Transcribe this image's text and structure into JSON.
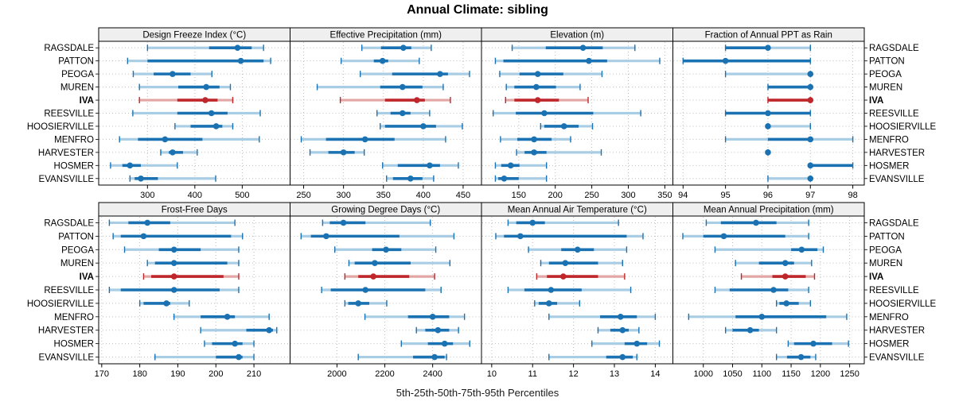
{
  "chart_data": {
    "type": "dotplot",
    "title": "Annual Climate: sibling",
    "caption": "5th-25th-50th-75th-95th Percentiles",
    "percentiles": [
      5,
      25,
      50,
      75,
      95
    ],
    "legend_position": "none",
    "grid": "dotted",
    "sites": [
      "RAGSDALE",
      "PATTON",
      "PEOGA",
      "MUREN",
      "IVA",
      "REESVILLE",
      "HOOSIERVILLE",
      "MENFRO",
      "HARVESTER",
      "HOSMER",
      "EVANSVILLE"
    ],
    "highlight_site": "IVA",
    "colors": {
      "series_blue": "#1a72b2",
      "series_blue_light": "#a9cde4",
      "highlight_red": "#bf272b",
      "highlight_red_light": "#e2a6a4",
      "strip_bg": "#efefef",
      "grid_dotted": "#bdbdbd",
      "panel_border": "#000000"
    },
    "panels": [
      {
        "title": "Design Freeze Index (°C)",
        "row": 0,
        "col": 0,
        "xlim": [
          197,
          601
        ],
        "ticks": [
          300,
          400,
          500
        ],
        "values": [
          [
            300,
            430,
            490,
            520,
            545
          ],
          [
            258,
            300,
            497,
            545,
            560
          ],
          [
            270,
            313,
            353,
            391,
            436
          ],
          [
            283,
            365,
            424,
            452,
            475
          ],
          [
            283,
            363,
            422,
            448,
            480
          ],
          [
            269,
            363,
            435,
            469,
            538
          ],
          [
            358,
            391,
            445,
            458,
            480
          ],
          [
            241,
            280,
            337,
            416,
            536
          ],
          [
            328,
            345,
            353,
            375,
            405
          ],
          [
            222,
            247,
            263,
            286,
            363
          ],
          [
            263,
            273,
            286,
            322,
            444
          ]
        ]
      },
      {
        "title": "Effective Precipitation (mm)",
        "row": 0,
        "col": 1,
        "xlim": [
          233,
          473
        ],
        "ticks": [
          250,
          300,
          350,
          400,
          450
        ],
        "values": [
          [
            323,
            347,
            375,
            385,
            410
          ],
          [
            297,
            338,
            349,
            356,
            395
          ],
          [
            321,
            361,
            421,
            431,
            458
          ],
          [
            267,
            346,
            374,
            399,
            425
          ],
          [
            296,
            352,
            392,
            402,
            434
          ],
          [
            342,
            359,
            374,
            384,
            408
          ],
          [
            346,
            352,
            400,
            416,
            449
          ],
          [
            247,
            278,
            327,
            364,
            428
          ],
          [
            258,
            281,
            300,
            314,
            326
          ],
          [
            349,
            368,
            408,
            421,
            444
          ],
          [
            354,
            362,
            384,
            399,
            413
          ]
        ]
      },
      {
        "title": "Elevation (m)",
        "row": 0,
        "col": 2,
        "xlim": [
          99,
          361
        ],
        "ticks": [
          150,
          200,
          250,
          300,
          350
        ],
        "values": [
          [
            141,
            187,
            238,
            265,
            309
          ],
          [
            118,
            129,
            246,
            271,
            343
          ],
          [
            124,
            151,
            176,
            211,
            264
          ],
          [
            133,
            144,
            174,
            201,
            234
          ],
          [
            132,
            144,
            176,
            205,
            245
          ],
          [
            115,
            146,
            185,
            252,
            317
          ],
          [
            180,
            185,
            212,
            232,
            251
          ],
          [
            125,
            148,
            171,
            195,
            221
          ],
          [
            147,
            158,
            171,
            188,
            263
          ],
          [
            118,
            126,
            139,
            151,
            188
          ],
          [
            118,
            122,
            130,
            150,
            188
          ]
        ]
      },
      {
        "title": "Fraction of Annual PPT as Rain",
        "row": 0,
        "col": 3,
        "xlim": [
          93.76,
          98.27
        ],
        "ticks": [
          94,
          95,
          96,
          97,
          98
        ],
        "values": [
          [
            95,
            95,
            96,
            96,
            97
          ],
          [
            94,
            94,
            95,
            97,
            97
          ],
          [
            95,
            97,
            97,
            97,
            97
          ],
          [
            96,
            96,
            97,
            97,
            97
          ],
          [
            96,
            96,
            97,
            97,
            97
          ],
          [
            95,
            95,
            96,
            97,
            97
          ],
          [
            96,
            96,
            96,
            96,
            97
          ],
          [
            95,
            96,
            97,
            97,
            98
          ],
          [
            96,
            96,
            96,
            96,
            96
          ],
          [
            97,
            97,
            97,
            98,
            98
          ],
          [
            96,
            97,
            97,
            97,
            97
          ]
        ]
      },
      {
        "title": "Frost-Free Days",
        "row": 1,
        "col": 0,
        "xlim": [
          169.2,
          219.5
        ],
        "ticks": [
          170,
          180,
          190,
          200,
          210
        ],
        "values": [
          [
            172,
            177,
            182,
            188,
            205
          ],
          [
            173,
            175,
            181,
            204,
            207
          ],
          [
            176,
            185,
            189,
            196,
            206
          ],
          [
            182,
            184,
            189,
            203,
            206
          ],
          [
            181,
            183,
            189,
            202,
            206
          ],
          [
            172,
            175,
            189,
            201,
            206
          ],
          [
            180,
            181,
            187,
            188,
            193
          ],
          [
            189,
            196,
            203,
            205,
            214
          ],
          [
            196,
            208,
            214,
            215,
            216
          ],
          [
            197,
            199,
            205,
            207,
            210
          ],
          [
            184,
            200,
            206,
            207,
            210
          ]
        ]
      },
      {
        "title": "Growing Degree Days (°C)",
        "row": 1,
        "col": 1,
        "xlim": [
          1804,
          2604
        ],
        "ticks": [
          2000,
          2200,
          2400
        ],
        "values": [
          [
            1940,
            1970,
            2027,
            2119,
            2390
          ],
          [
            1850,
            1891,
            1955,
            2261,
            2489
          ],
          [
            1991,
            2147,
            2205,
            2269,
            2413
          ],
          [
            2050,
            2074,
            2158,
            2308,
            2472
          ],
          [
            2033,
            2089,
            2152,
            2302,
            2408
          ],
          [
            1936,
            1974,
            2119,
            2369,
            2435
          ],
          [
            2033,
            2047,
            2089,
            2135,
            2208
          ],
          [
            2117,
            2297,
            2400,
            2469,
            2533
          ],
          [
            2332,
            2369,
            2422,
            2469,
            2508
          ],
          [
            2269,
            2380,
            2450,
            2485,
            2555
          ],
          [
            2089,
            2318,
            2408,
            2450,
            2458
          ]
        ]
      },
      {
        "title": "Mean Annual Air Temperature (°C)",
        "row": 1,
        "col": 2,
        "xlim": [
          9.75,
          14.43
        ],
        "ticks": [
          10,
          11,
          12,
          13,
          14
        ],
        "values": [
          [
            10.4,
            10.6,
            11.0,
            11.3,
            13.1
          ],
          [
            10.1,
            10.3,
            10.7,
            13.3,
            13.7
          ],
          [
            10.9,
            11.7,
            12.1,
            12.5,
            13.3
          ],
          [
            11.2,
            11.4,
            11.8,
            12.6,
            13.2
          ],
          [
            11.1,
            11.35,
            11.75,
            12.6,
            13.25
          ],
          [
            10.4,
            10.8,
            11.45,
            12.2,
            13.4
          ],
          [
            11.05,
            11.15,
            11.4,
            11.6,
            12.15
          ],
          [
            11.4,
            12.65,
            13.15,
            13.55,
            14.0
          ],
          [
            12.6,
            12.9,
            13.2,
            13.35,
            13.6
          ],
          [
            12.45,
            13.25,
            13.55,
            13.8,
            14.1
          ],
          [
            11.4,
            12.8,
            13.2,
            13.45,
            13.55
          ]
        ]
      },
      {
        "title": "Mean Annual Precipitation (mm)",
        "row": 1,
        "col": 3,
        "xlim": [
          948,
          1275
        ],
        "ticks": [
          1000,
          1050,
          1100,
          1150,
          1200,
          1250
        ],
        "values": [
          [
            1005,
            1030,
            1090,
            1125,
            1180
          ],
          [
            965,
            1000,
            1035,
            1140,
            1180
          ],
          [
            1020,
            1150,
            1168,
            1195,
            1205
          ],
          [
            1055,
            1095,
            1140,
            1155,
            1185
          ],
          [
            1065,
            1118,
            1140,
            1175,
            1190
          ],
          [
            1020,
            1045,
            1120,
            1145,
            1180
          ],
          [
            1125,
            1130,
            1142,
            1163,
            1183
          ],
          [
            975,
            1055,
            1100,
            1210,
            1245
          ],
          [
            1038,
            1050,
            1080,
            1095,
            1125
          ],
          [
            1145,
            1155,
            1188,
            1220,
            1248
          ],
          [
            1125,
            1143,
            1167,
            1183,
            1192
          ]
        ]
      }
    ]
  }
}
